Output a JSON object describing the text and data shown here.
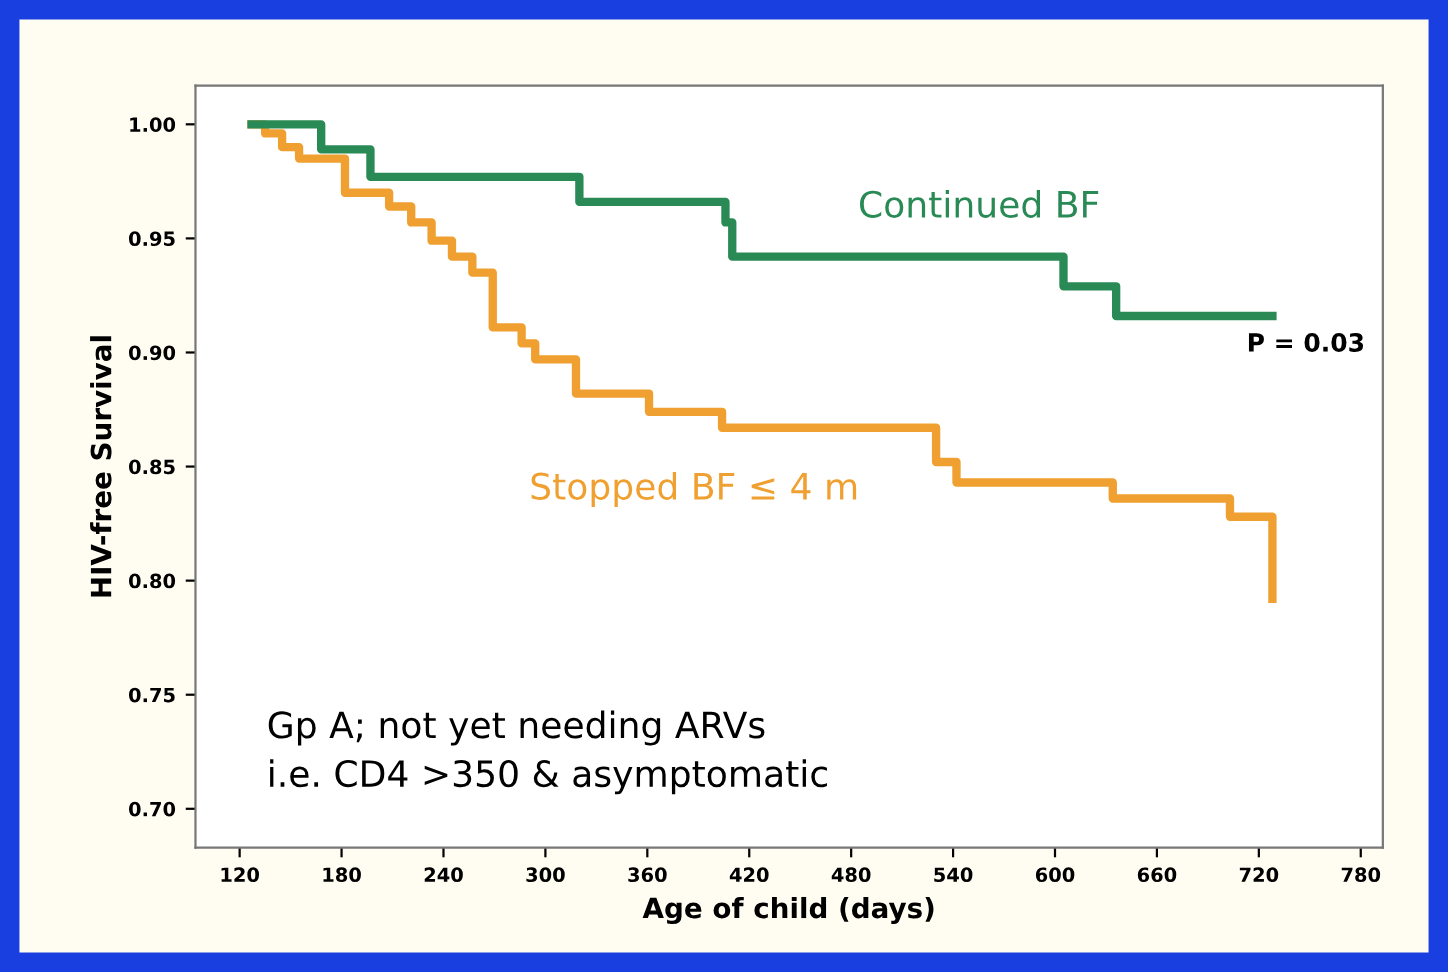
{
  "chart_data": {
    "type": "step",
    "xlabel": "Age of child (days)",
    "ylabel": "HIV-free Survival",
    "series": [
      {
        "name": "Continued BF",
        "color": "#2a8a55",
        "x": [
          127,
          168,
          197,
          320,
          406,
          410,
          605,
          636,
          728
        ],
        "values": [
          1.0,
          0.989,
          0.977,
          0.966,
          0.957,
          0.942,
          0.929,
          0.916,
          0.916
        ]
      },
      {
        "name": "Stopped BF ≤ 4 m",
        "color": "#f0a030",
        "x": [
          127,
          135,
          145,
          155,
          182,
          208,
          221,
          233,
          245,
          257,
          269,
          286,
          294,
          318,
          361,
          404,
          530,
          542,
          634,
          703,
          728
        ],
        "values": [
          1.0,
          0.996,
          0.99,
          0.985,
          0.97,
          0.964,
          0.957,
          0.949,
          0.942,
          0.935,
          0.911,
          0.904,
          0.897,
          0.882,
          0.874,
          0.867,
          0.852,
          0.843,
          0.836,
          0.828,
          0.792
        ]
      }
    ],
    "annotations": [
      "P = 0.03",
      "Gp A; not yet needing ARVs\ni.e. CD4 >350 & asymptomatic"
    ],
    "xlim": [
      94,
      793
    ],
    "xticks": [
      120,
      180,
      240,
      300,
      360,
      420,
      480,
      540,
      600,
      660,
      720,
      780
    ],
    "ylim": [
      0.683,
      1.017
    ],
    "yticks": [
      {
        "value": 0.7,
        "label": "0.70"
      },
      {
        "value": 0.75,
        "label": "0.75"
      },
      {
        "value": 0.8,
        "label": "0.80"
      },
      {
        "value": 0.85,
        "label": "0.85"
      },
      {
        "value": 0.9,
        "label": "0.90"
      },
      {
        "value": 0.95,
        "label": "0.95"
      },
      {
        "value": 1.0,
        "label": "1.00"
      }
    ],
    "grid": false,
    "legend": false
  }
}
